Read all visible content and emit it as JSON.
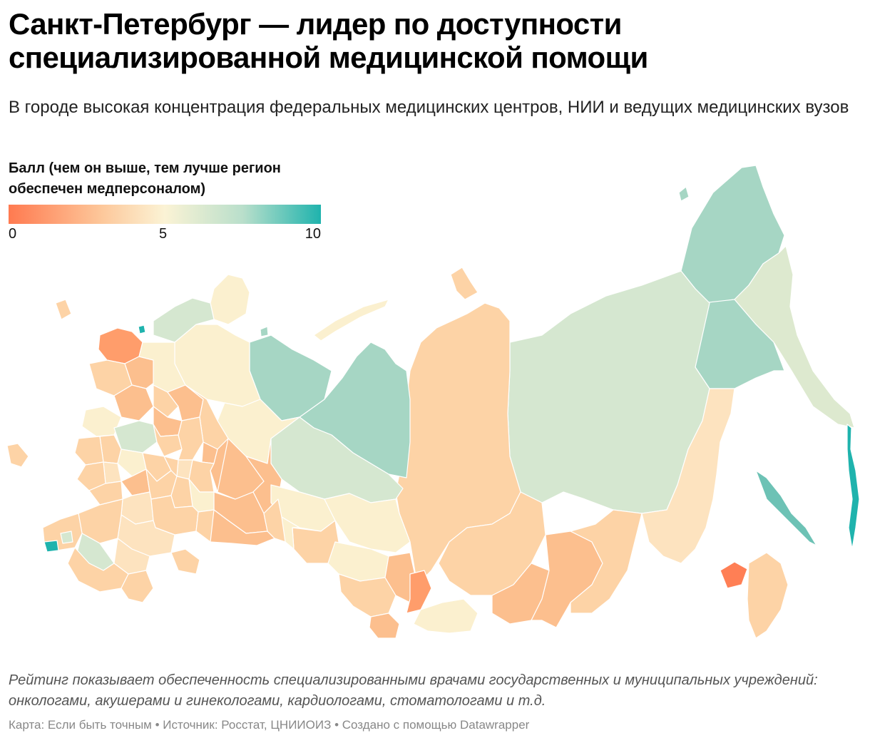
{
  "header": {
    "title": "Санкт-Петербург — лидер по доступности специализированной медицинской помощи",
    "subtitle": "В городе высокая концентрация федеральных медицинских центров, НИИ и ведущих медицинских вузов"
  },
  "legend": {
    "title": "Балл (чем он выше, тем лучше регион обеспечен медперсоналом)",
    "tick_min": "0",
    "tick_mid": "5",
    "tick_max": "10",
    "colors": [
      "#ff7a50",
      "#fdc89b",
      "#fbf3d5",
      "#b9dfcb",
      "#1fb3ad"
    ]
  },
  "notes": "Рейтинг показывает обеспеченность специализированными врачами государственных и муниципальных учреждений: онкологами, акушерами и гинекологами, кардиологами, стоматологами и т.д.",
  "credits": "Карта: Если быть точным • Источник: Росстат, ЦНИИОИЗ • Создано с помощью Datawrapper"
}
